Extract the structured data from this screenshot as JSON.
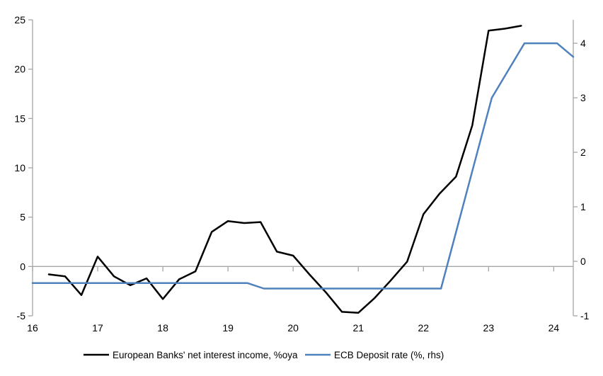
{
  "colors": {
    "background": "#ffffff",
    "axis": "#a6a6a6",
    "text": "#000000",
    "nii_line": "#000000",
    "ecb_line": "#4f81bd"
  },
  "chart_data": {
    "type": "line",
    "title": "",
    "grid": "off",
    "legend_position": "bottom",
    "x_axis": {
      "range": [
        16,
        24.3
      ],
      "ticks": [
        16,
        17,
        18,
        19,
        20,
        21,
        22,
        23,
        24
      ],
      "tick_labels": [
        "16",
        "17",
        "18",
        "19",
        "20",
        "21",
        "22",
        "23",
        "24"
      ]
    },
    "left_axis": {
      "range": [
        -5,
        25
      ],
      "ticks": [
        -5,
        0,
        5,
        10,
        15,
        20,
        25
      ],
      "tick_labels": [
        "-5",
        "0",
        "5",
        "10",
        "15",
        "20",
        "25"
      ]
    },
    "right_axis": {
      "range": [
        -1,
        4.43
      ],
      "ticks": [
        -1,
        0,
        1,
        2,
        3,
        4
      ],
      "tick_labels": [
        "-1",
        "0",
        "1",
        "2",
        "3",
        "4"
      ]
    },
    "series": [
      {
        "name": "European Banks' net interest income, %oya",
        "axis": "left",
        "color": "#000000",
        "x": [
          16.25,
          16.5,
          16.75,
          17.0,
          17.25,
          17.5,
          17.75,
          18.0,
          18.25,
          18.5,
          18.75,
          19.0,
          19.25,
          19.5,
          19.75,
          20.0,
          20.25,
          20.5,
          20.75,
          21.0,
          21.25,
          21.5,
          21.75,
          22.0,
          22.25,
          22.5,
          22.75,
          23.0,
          23.25,
          23.5
        ],
        "values": [
          -0.8,
          -1.0,
          -2.9,
          1.0,
          -1.0,
          -1.9,
          -1.2,
          -3.3,
          -1.3,
          -0.5,
          3.5,
          4.6,
          4.4,
          4.5,
          1.5,
          1.1,
          -0.8,
          -2.6,
          -4.6,
          -4.7,
          -3.2,
          -1.4,
          0.5,
          5.3,
          7.4,
          9.1,
          14.3,
          23.9,
          24.1,
          24.4
        ]
      },
      {
        "name": "ECB Deposit rate (%, rhs)",
        "axis": "right",
        "color": "#4f81bd",
        "x": [
          16.0,
          19.3,
          19.55,
          22.27,
          23.05,
          23.55,
          24.05,
          24.3
        ],
        "values": [
          -0.4,
          -0.4,
          -0.5,
          -0.5,
          3.0,
          4.0,
          4.0,
          3.75
        ]
      }
    ]
  }
}
